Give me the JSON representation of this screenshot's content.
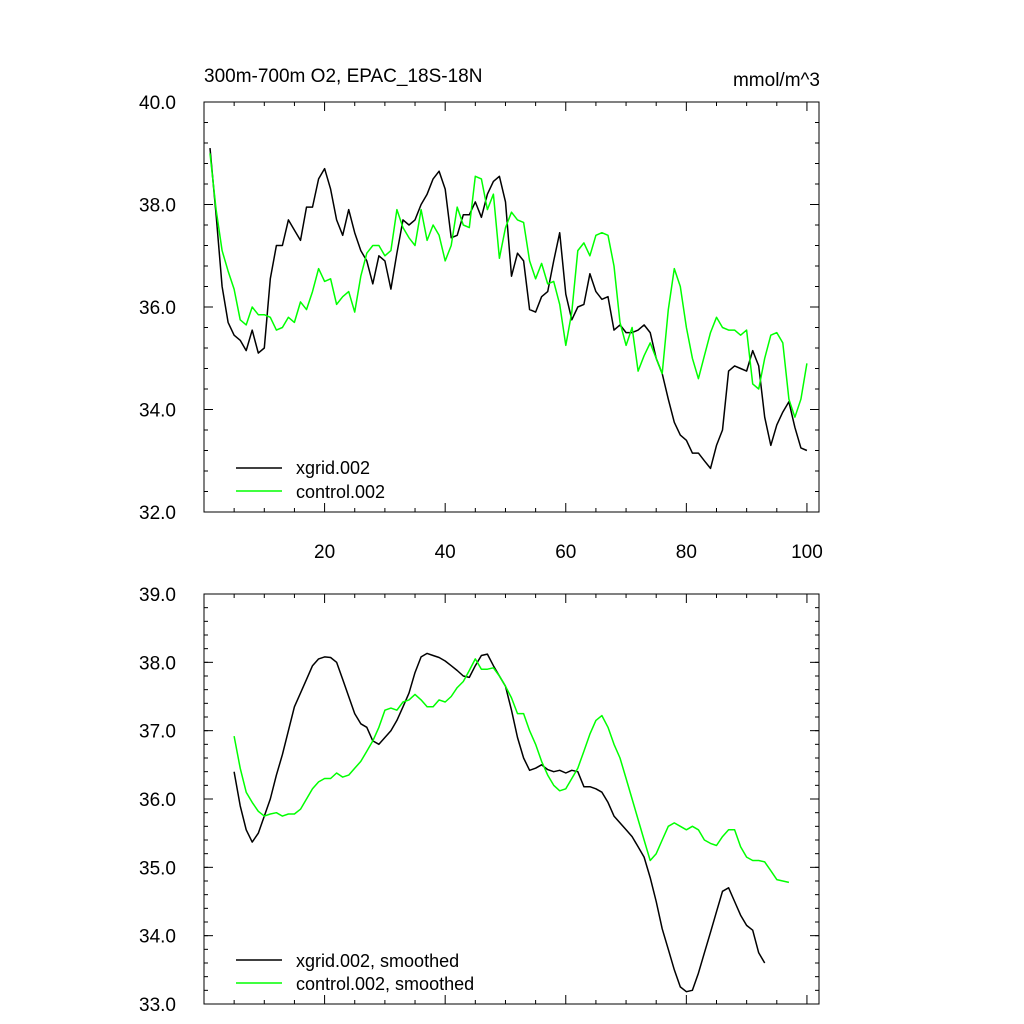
{
  "chart_data": [
    {
      "type": "line",
      "title": "300m-700m O2, EPAC_18S-18N",
      "title_right": "mmol/m^3",
      "xlim": [
        0,
        102
      ],
      "ylim": [
        32.0,
        40.0
      ],
      "xticks": [
        20,
        40,
        60,
        80,
        100
      ],
      "xtick_labels": [
        "20",
        "40",
        "60",
        "80",
        "100"
      ],
      "yticks": [
        32.0,
        34.0,
        36.0,
        38.0,
        40.0
      ],
      "ytick_labels": [
        "32.0",
        "34.0",
        "36.0",
        "38.0",
        "40.0"
      ],
      "grid": false,
      "legend_position": "bottom-left",
      "series": [
        {
          "name": "xgrid.002",
          "color": "#000000",
          "x": [
            1,
            2,
            3,
            4,
            5,
            6,
            7,
            8,
            9,
            10,
            11,
            12,
            13,
            14,
            15,
            16,
            17,
            18,
            19,
            20,
            21,
            22,
            23,
            24,
            25,
            26,
            27,
            28,
            29,
            30,
            31,
            32,
            33,
            34,
            35,
            36,
            37,
            38,
            39,
            40,
            41,
            42,
            43,
            44,
            45,
            46,
            47,
            48,
            49,
            50,
            51,
            52,
            53,
            54,
            55,
            56,
            57,
            58,
            59,
            60,
            61,
            62,
            63,
            64,
            65,
            66,
            67,
            68,
            69,
            70,
            71,
            72,
            73,
            74,
            75,
            76,
            77,
            78,
            79,
            80,
            81,
            82,
            83,
            84,
            85,
            86,
            87,
            88,
            89,
            90,
            91,
            92,
            93,
            94,
            95,
            96,
            97,
            98,
            99,
            100,
            101
          ],
          "values": [
            39.1,
            37.8,
            36.4,
            35.7,
            35.45,
            35.35,
            35.15,
            35.55,
            35.1,
            35.2,
            36.55,
            37.2,
            37.2,
            37.7,
            37.5,
            37.3,
            37.95,
            37.95,
            38.5,
            38.7,
            38.3,
            37.7,
            37.4,
            37.9,
            37.45,
            37.1,
            36.9,
            36.45,
            37.0,
            36.9,
            36.35,
            37.05,
            37.7,
            37.6,
            37.7,
            38.0,
            38.2,
            38.5,
            38.65,
            38.3,
            37.35,
            37.4,
            37.8,
            37.8,
            38.05,
            37.75,
            38.2,
            38.45,
            38.55,
            38.05,
            36.6,
            37.05,
            36.9,
            35.95,
            35.9,
            36.2,
            36.3,
            36.9,
            37.45,
            36.25,
            35.75,
            36.0,
            36.05,
            36.65,
            36.3,
            36.15,
            36.2,
            35.55,
            35.65,
            35.5,
            35.5,
            35.55,
            35.65,
            35.5,
            35.0,
            34.7,
            34.2,
            33.75,
            33.5,
            33.4,
            33.15,
            33.15,
            33.0,
            32.85,
            33.3,
            33.6,
            34.75,
            34.85,
            34.8,
            34.75,
            35.15,
            34.85,
            33.85,
            33.3,
            33.7,
            33.95,
            34.15,
            33.65,
            33.25,
            33.2,
            null
          ]
        },
        {
          "name": "control.002",
          "color": "#00ff00",
          "x": [
            1,
            2,
            3,
            4,
            5,
            6,
            7,
            8,
            9,
            10,
            11,
            12,
            13,
            14,
            15,
            16,
            17,
            18,
            19,
            20,
            21,
            22,
            23,
            24,
            25,
            26,
            27,
            28,
            29,
            30,
            31,
            32,
            33,
            34,
            35,
            36,
            37,
            38,
            39,
            40,
            41,
            42,
            43,
            44,
            45,
            46,
            47,
            48,
            49,
            50,
            51,
            52,
            53,
            54,
            55,
            56,
            57,
            58,
            59,
            60,
            61,
            62,
            63,
            64,
            65,
            66,
            67,
            68,
            69,
            70,
            71,
            72,
            73,
            74,
            75,
            76,
            77,
            78,
            79,
            80,
            81,
            82,
            83,
            84,
            85,
            86,
            87,
            88,
            89,
            90,
            91,
            92,
            93,
            94,
            95,
            96,
            97,
            98,
            99,
            100,
            101
          ],
          "values": [
            39.0,
            37.9,
            37.1,
            36.7,
            36.35,
            35.75,
            35.65,
            36.0,
            35.85,
            35.85,
            35.8,
            35.55,
            35.6,
            35.8,
            35.7,
            36.1,
            35.95,
            36.3,
            36.75,
            36.5,
            36.55,
            36.05,
            36.2,
            36.3,
            35.9,
            36.6,
            37.05,
            37.2,
            37.2,
            37.0,
            37.1,
            37.9,
            37.55,
            37.35,
            37.2,
            37.9,
            37.3,
            37.6,
            37.4,
            36.9,
            37.2,
            37.95,
            37.6,
            37.55,
            38.55,
            38.5,
            37.9,
            38.2,
            36.95,
            37.55,
            37.85,
            37.7,
            37.65,
            36.9,
            36.55,
            36.85,
            36.45,
            36.5,
            36.05,
            35.25,
            35.9,
            37.1,
            37.25,
            37.0,
            37.4,
            37.45,
            37.4,
            36.8,
            35.7,
            35.25,
            35.6,
            34.75,
            35.05,
            35.3,
            35.0,
            34.7,
            35.95,
            36.75,
            36.4,
            35.6,
            35.0,
            34.6,
            35.05,
            35.5,
            35.8,
            35.6,
            35.55,
            35.55,
            35.45,
            35.55,
            34.5,
            34.4,
            35.0,
            35.45,
            35.5,
            35.3,
            34.2,
            33.85,
            34.2,
            34.9,
            null
          ]
        }
      ]
    },
    {
      "type": "line",
      "xlim": [
        0,
        102
      ],
      "ylim": [
        33.0,
        39.0
      ],
      "yticks": [
        33.0,
        34.0,
        35.0,
        36.0,
        37.0,
        38.0,
        39.0
      ],
      "ytick_labels": [
        "33.0",
        "34.0",
        "35.0",
        "36.0",
        "37.0",
        "38.0",
        "39.0"
      ],
      "grid": false,
      "legend_position": "bottom-left",
      "series": [
        {
          "name": "xgrid.002, smoothed",
          "color": "#000000",
          "x": [
            5,
            6,
            7,
            8,
            9,
            10,
            11,
            12,
            13,
            14,
            15,
            16,
            17,
            18,
            19,
            20,
            21,
            22,
            23,
            24,
            25,
            26,
            27,
            28,
            29,
            30,
            31,
            32,
            33,
            34,
            35,
            36,
            37,
            38,
            39,
            40,
            41,
            42,
            43,
            44,
            45,
            46,
            47,
            48,
            49,
            50,
            51,
            52,
            53,
            54,
            55,
            56,
            57,
            58,
            59,
            60,
            61,
            62,
            63,
            64,
            65,
            66,
            67,
            68,
            69,
            70,
            71,
            72,
            73,
            74,
            75,
            76,
            77,
            78,
            79,
            80,
            81,
            82,
            83,
            84,
            85,
            86,
            87,
            88,
            89,
            90,
            91,
            92,
            93,
            94,
            95,
            96,
            97
          ],
          "values": [
            36.4,
            35.9,
            35.55,
            35.37,
            35.5,
            35.75,
            36.0,
            36.35,
            36.65,
            37.0,
            37.35,
            37.55,
            37.75,
            37.95,
            38.05,
            38.08,
            38.07,
            38.0,
            37.75,
            37.5,
            37.25,
            37.1,
            37.05,
            36.85,
            36.8,
            36.9,
            37.0,
            37.15,
            37.35,
            37.55,
            37.85,
            38.08,
            38.13,
            38.1,
            38.07,
            38.02,
            37.95,
            37.88,
            37.8,
            37.78,
            37.95,
            38.1,
            38.12,
            37.95,
            37.8,
            37.65,
            37.3,
            36.9,
            36.6,
            36.42,
            36.45,
            36.5,
            36.43,
            36.4,
            36.42,
            36.38,
            36.42,
            36.4,
            36.18,
            36.18,
            36.15,
            36.1,
            35.95,
            35.75,
            35.65,
            35.55,
            35.45,
            35.3,
            35.15,
            34.85,
            34.5,
            34.1,
            33.8,
            33.5,
            33.25,
            33.18,
            33.2,
            33.45,
            33.75,
            34.05,
            34.35,
            34.65,
            34.7,
            34.5,
            34.3,
            34.15,
            34.08,
            33.75,
            33.6,
            null,
            null,
            null,
            null
          ]
        },
        {
          "name": "control.002, smoothed",
          "color": "#00ff00",
          "x": [
            5,
            6,
            7,
            8,
            9,
            10,
            11,
            12,
            13,
            14,
            15,
            16,
            17,
            18,
            19,
            20,
            21,
            22,
            23,
            24,
            25,
            26,
            27,
            28,
            29,
            30,
            31,
            32,
            33,
            34,
            35,
            36,
            37,
            38,
            39,
            40,
            41,
            42,
            43,
            44,
            45,
            46,
            47,
            48,
            49,
            50,
            51,
            52,
            53,
            54,
            55,
            56,
            57,
            58,
            59,
            60,
            61,
            62,
            63,
            64,
            65,
            66,
            67,
            68,
            69,
            70,
            71,
            72,
            73,
            74,
            75,
            76,
            77,
            78,
            79,
            80,
            81,
            82,
            83,
            84,
            85,
            86,
            87,
            88,
            89,
            90,
            91,
            92,
            93,
            94,
            95,
            96,
            97
          ],
          "values": [
            36.92,
            36.45,
            36.1,
            35.95,
            35.82,
            35.75,
            35.78,
            35.8,
            35.75,
            35.78,
            35.78,
            35.85,
            36.0,
            36.15,
            36.25,
            36.3,
            36.3,
            36.38,
            36.32,
            36.35,
            36.45,
            36.55,
            36.7,
            36.85,
            37.05,
            37.3,
            37.33,
            37.3,
            37.42,
            37.45,
            37.53,
            37.45,
            37.35,
            37.35,
            37.45,
            37.42,
            37.5,
            37.63,
            37.72,
            37.88,
            38.05,
            37.9,
            37.9,
            37.92,
            37.8,
            37.65,
            37.48,
            37.25,
            37.25,
            37.0,
            36.8,
            36.55,
            36.35,
            36.2,
            36.12,
            36.15,
            36.3,
            36.45,
            36.7,
            36.95,
            37.15,
            37.22,
            37.05,
            36.8,
            36.6,
            36.3,
            36.0,
            35.7,
            35.4,
            35.1,
            35.2,
            35.4,
            35.6,
            35.65,
            35.6,
            35.55,
            35.6,
            35.55,
            35.4,
            35.35,
            35.32,
            35.45,
            35.55,
            35.55,
            35.3,
            35.15,
            35.1,
            35.1,
            35.08,
            34.95,
            34.82,
            34.8,
            34.78
          ]
        }
      ]
    }
  ]
}
